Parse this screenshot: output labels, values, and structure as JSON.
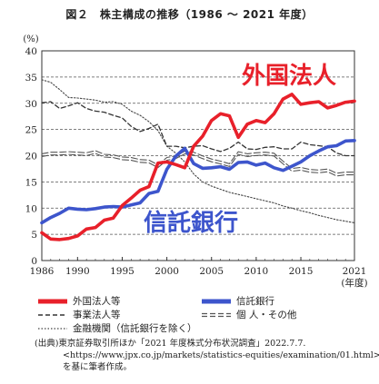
{
  "chart_data": {
    "type": "line",
    "title": "図２　株主構成の推移（1986 ～ 2021 年度）",
    "ylabel": "(%)",
    "xlabel": "(年度)",
    "ylim": [
      0,
      40
    ],
    "xlim": [
      1986,
      2021
    ],
    "y_ticks": [
      0,
      5,
      10,
      15,
      20,
      25,
      30,
      35,
      40
    ],
    "x_ticks": [
      1986,
      1990,
      1995,
      2000,
      2005,
      2010,
      2015,
      2021
    ],
    "grid": "horizontal dashed",
    "legend_position": "bottom",
    "annotations": [
      "外国法人",
      "信託銀行"
    ],
    "annotation_colors": {
      "外国法人": "#e8202a",
      "信託銀行": "#3d55cc"
    },
    "series": [
      {
        "name": "外国法人等",
        "style": "thick-solid",
        "color": "#e8202a",
        "x": [
          1986,
          1987,
          1988,
          1989,
          1990,
          1991,
          1992,
          1993,
          1994,
          1995,
          1996,
          1997,
          1998,
          1999,
          2000,
          2001,
          2002,
          2003,
          2004,
          2005,
          2006,
          2007,
          2008,
          2009,
          2010,
          2011,
          2012,
          2013,
          2014,
          2015,
          2016,
          2017,
          2018,
          2019,
          2020,
          2021
        ],
        "values": [
          5.3,
          4.1,
          4.0,
          4.2,
          4.7,
          6.0,
          6.3,
          7.7,
          8.1,
          10.5,
          11.9,
          13.4,
          14.1,
          18.6,
          18.8,
          18.3,
          17.7,
          21.8,
          23.7,
          26.7,
          28.0,
          27.6,
          23.5,
          26.0,
          26.7,
          26.3,
          28.0,
          30.8,
          31.7,
          29.8,
          30.1,
          30.3,
          29.1,
          29.6,
          30.2,
          30.4
        ]
      },
      {
        "name": "信託銀行",
        "style": "thick-solid",
        "color": "#3d55cc",
        "x": [
          1986,
          1987,
          1988,
          1989,
          1990,
          1991,
          1992,
          1993,
          1994,
          1995,
          1996,
          1997,
          1998,
          1999,
          2000,
          2001,
          2002,
          2003,
          2004,
          2005,
          2006,
          2007,
          2008,
          2009,
          2010,
          2011,
          2012,
          2013,
          2014,
          2015,
          2016,
          2017,
          2018,
          2019,
          2020,
          2021
        ],
        "values": [
          7.2,
          8.2,
          9.0,
          10.0,
          9.8,
          9.7,
          9.9,
          10.2,
          10.3,
          10.2,
          10.6,
          11.0,
          12.8,
          13.2,
          17.4,
          19.9,
          21.4,
          18.5,
          17.6,
          17.7,
          17.9,
          17.4,
          18.7,
          18.8,
          18.2,
          18.6,
          17.7,
          17.2,
          18.0,
          18.8,
          20.0,
          20.9,
          21.7,
          21.9,
          22.8,
          22.9
        ]
      },
      {
        "name": "事業法人等",
        "style": "dashed",
        "color": "#333333",
        "x": [
          1986,
          1987,
          1988,
          1989,
          1990,
          1991,
          1992,
          1993,
          1994,
          1995,
          1996,
          1997,
          1998,
          1999,
          2000,
          2001,
          2002,
          2003,
          2004,
          2005,
          2006,
          2007,
          2008,
          2009,
          2010,
          2011,
          2012,
          2013,
          2014,
          2015,
          2016,
          2017,
          2018,
          2019,
          2020,
          2021
        ],
        "values": [
          30.1,
          30.3,
          29.0,
          29.5,
          30.1,
          29.0,
          28.5,
          28.3,
          27.7,
          27.2,
          25.6,
          24.6,
          25.2,
          26.0,
          21.8,
          21.8,
          21.5,
          21.8,
          21.9,
          21.3,
          20.8,
          21.4,
          22.6,
          21.3,
          21.2,
          21.6,
          21.7,
          21.3,
          21.3,
          22.6,
          22.1,
          21.9,
          21.7,
          20.5,
          20.0,
          20.0
        ]
      },
      {
        "name": "個 人・その他",
        "style": "double-dashed",
        "color": "#555555",
        "x": [
          1986,
          1987,
          1988,
          1989,
          1990,
          1991,
          1992,
          1993,
          1994,
          1995,
          1996,
          1997,
          1998,
          1999,
          2000,
          2001,
          2002,
          2003,
          2004,
          2005,
          2006,
          2007,
          2008,
          2009,
          2010,
          2011,
          2012,
          2013,
          2014,
          2015,
          2016,
          2017,
          2018,
          2019,
          2020,
          2021
        ],
        "values": [
          20.1,
          20.4,
          20.4,
          20.5,
          20.4,
          20.3,
          20.7,
          20.0,
          19.9,
          19.5,
          19.4,
          19.0,
          18.9,
          18.0,
          19.4,
          19.7,
          20.6,
          20.4,
          19.7,
          19.1,
          18.7,
          18.2,
          20.5,
          20.1,
          20.3,
          20.4,
          20.2,
          18.7,
          17.3,
          17.5,
          17.1,
          17.0,
          17.2,
          16.4,
          16.6,
          16.6
        ]
      },
      {
        "name": "金融機関（信託銀行を除く）",
        "style": "dotted",
        "color": "#444444",
        "x": [
          1986,
          1987,
          1988,
          1989,
          1990,
          1991,
          1992,
          1993,
          1994,
          1995,
          1996,
          1997,
          1998,
          1999,
          2000,
          2001,
          2002,
          2003,
          2004,
          2005,
          2006,
          2007,
          2008,
          2009,
          2010,
          2011,
          2012,
          2013,
          2014,
          2015,
          2016,
          2017,
          2018,
          2019,
          2020,
          2021
        ],
        "values": [
          34.5,
          34.0,
          32.6,
          31.1,
          31.0,
          30.8,
          30.6,
          30.2,
          30.3,
          29.8,
          28.5,
          27.7,
          26.5,
          24.8,
          21.8,
          20.5,
          18.8,
          16.5,
          15.0,
          14.2,
          13.6,
          13.0,
          12.6,
          12.2,
          11.8,
          11.4,
          11.0,
          10.4,
          10.0,
          9.5,
          9.1,
          8.6,
          8.2,
          7.8,
          7.5,
          7.2
        ]
      }
    ]
  },
  "source_note": {
    "line1": "(出典)東京証券取引所ほか「2021 年度株式分布状況調査」2022.7.7.",
    "line2": "<https://www.jpx.co.jp/markets/statistics-equities/examination/01.html>",
    "line3": "を基に筆者作成。"
  }
}
